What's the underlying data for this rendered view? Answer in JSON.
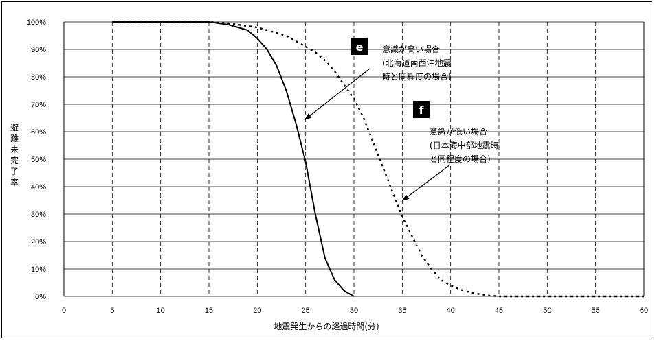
{
  "chart_data": {
    "type": "line",
    "xlabel": "地震発生からの経過時間(分)",
    "ylabel": "避難未完了率",
    "xlim": [
      0,
      60
    ],
    "ylim": [
      0,
      100
    ],
    "x_ticks": [
      "0",
      "5",
      "10",
      "15",
      "20",
      "25",
      "30",
      "35",
      "40",
      "45",
      "50",
      "55",
      "60"
    ],
    "y_ticks": [
      "0%",
      "10%",
      "20%",
      "30%",
      "40%",
      "50%",
      "60%",
      "70%",
      "80%",
      "90%",
      "100%"
    ],
    "grid": "horizontal solid, vertical dashed",
    "series": [
      {
        "style": "solid",
        "x": [
          5,
          15,
          16,
          17,
          18,
          19,
          20,
          21,
          22,
          23,
          24,
          25,
          26,
          27,
          28,
          29,
          30
        ],
        "y": [
          100,
          100,
          99.5,
          99,
          98,
          97,
          94,
          90,
          84,
          75,
          63,
          49,
          30,
          14,
          6,
          2,
          0
        ]
      },
      {
        "style": "dotted",
        "x": [
          5,
          15,
          16,
          17,
          18,
          19,
          20,
          21,
          22,
          23,
          24,
          25,
          26,
          27,
          28,
          29,
          30,
          31,
          32,
          33,
          34,
          35,
          36,
          37,
          38,
          39,
          40,
          41,
          42,
          43,
          44,
          45,
          60
        ],
        "y": [
          100,
          100,
          99.8,
          99.5,
          99,
          98.5,
          98,
          97,
          96,
          95,
          93,
          91,
          89,
          86,
          82,
          77,
          72,
          65,
          56,
          47,
          38,
          29,
          22,
          15,
          10,
          6,
          4,
          2.5,
          1.5,
          0.8,
          0.3,
          0,
          0
        ]
      }
    ],
    "annotations": [
      {
        "badge": "e",
        "lines": [
          "意識が高い場合",
          "(北海道南西沖地震",
          "時と同程度の場合)"
        ]
      },
      {
        "badge": "f",
        "lines": [
          "意識が低い場合",
          "(日本海中部地震時",
          "と同程度の場合)"
        ]
      }
    ]
  }
}
